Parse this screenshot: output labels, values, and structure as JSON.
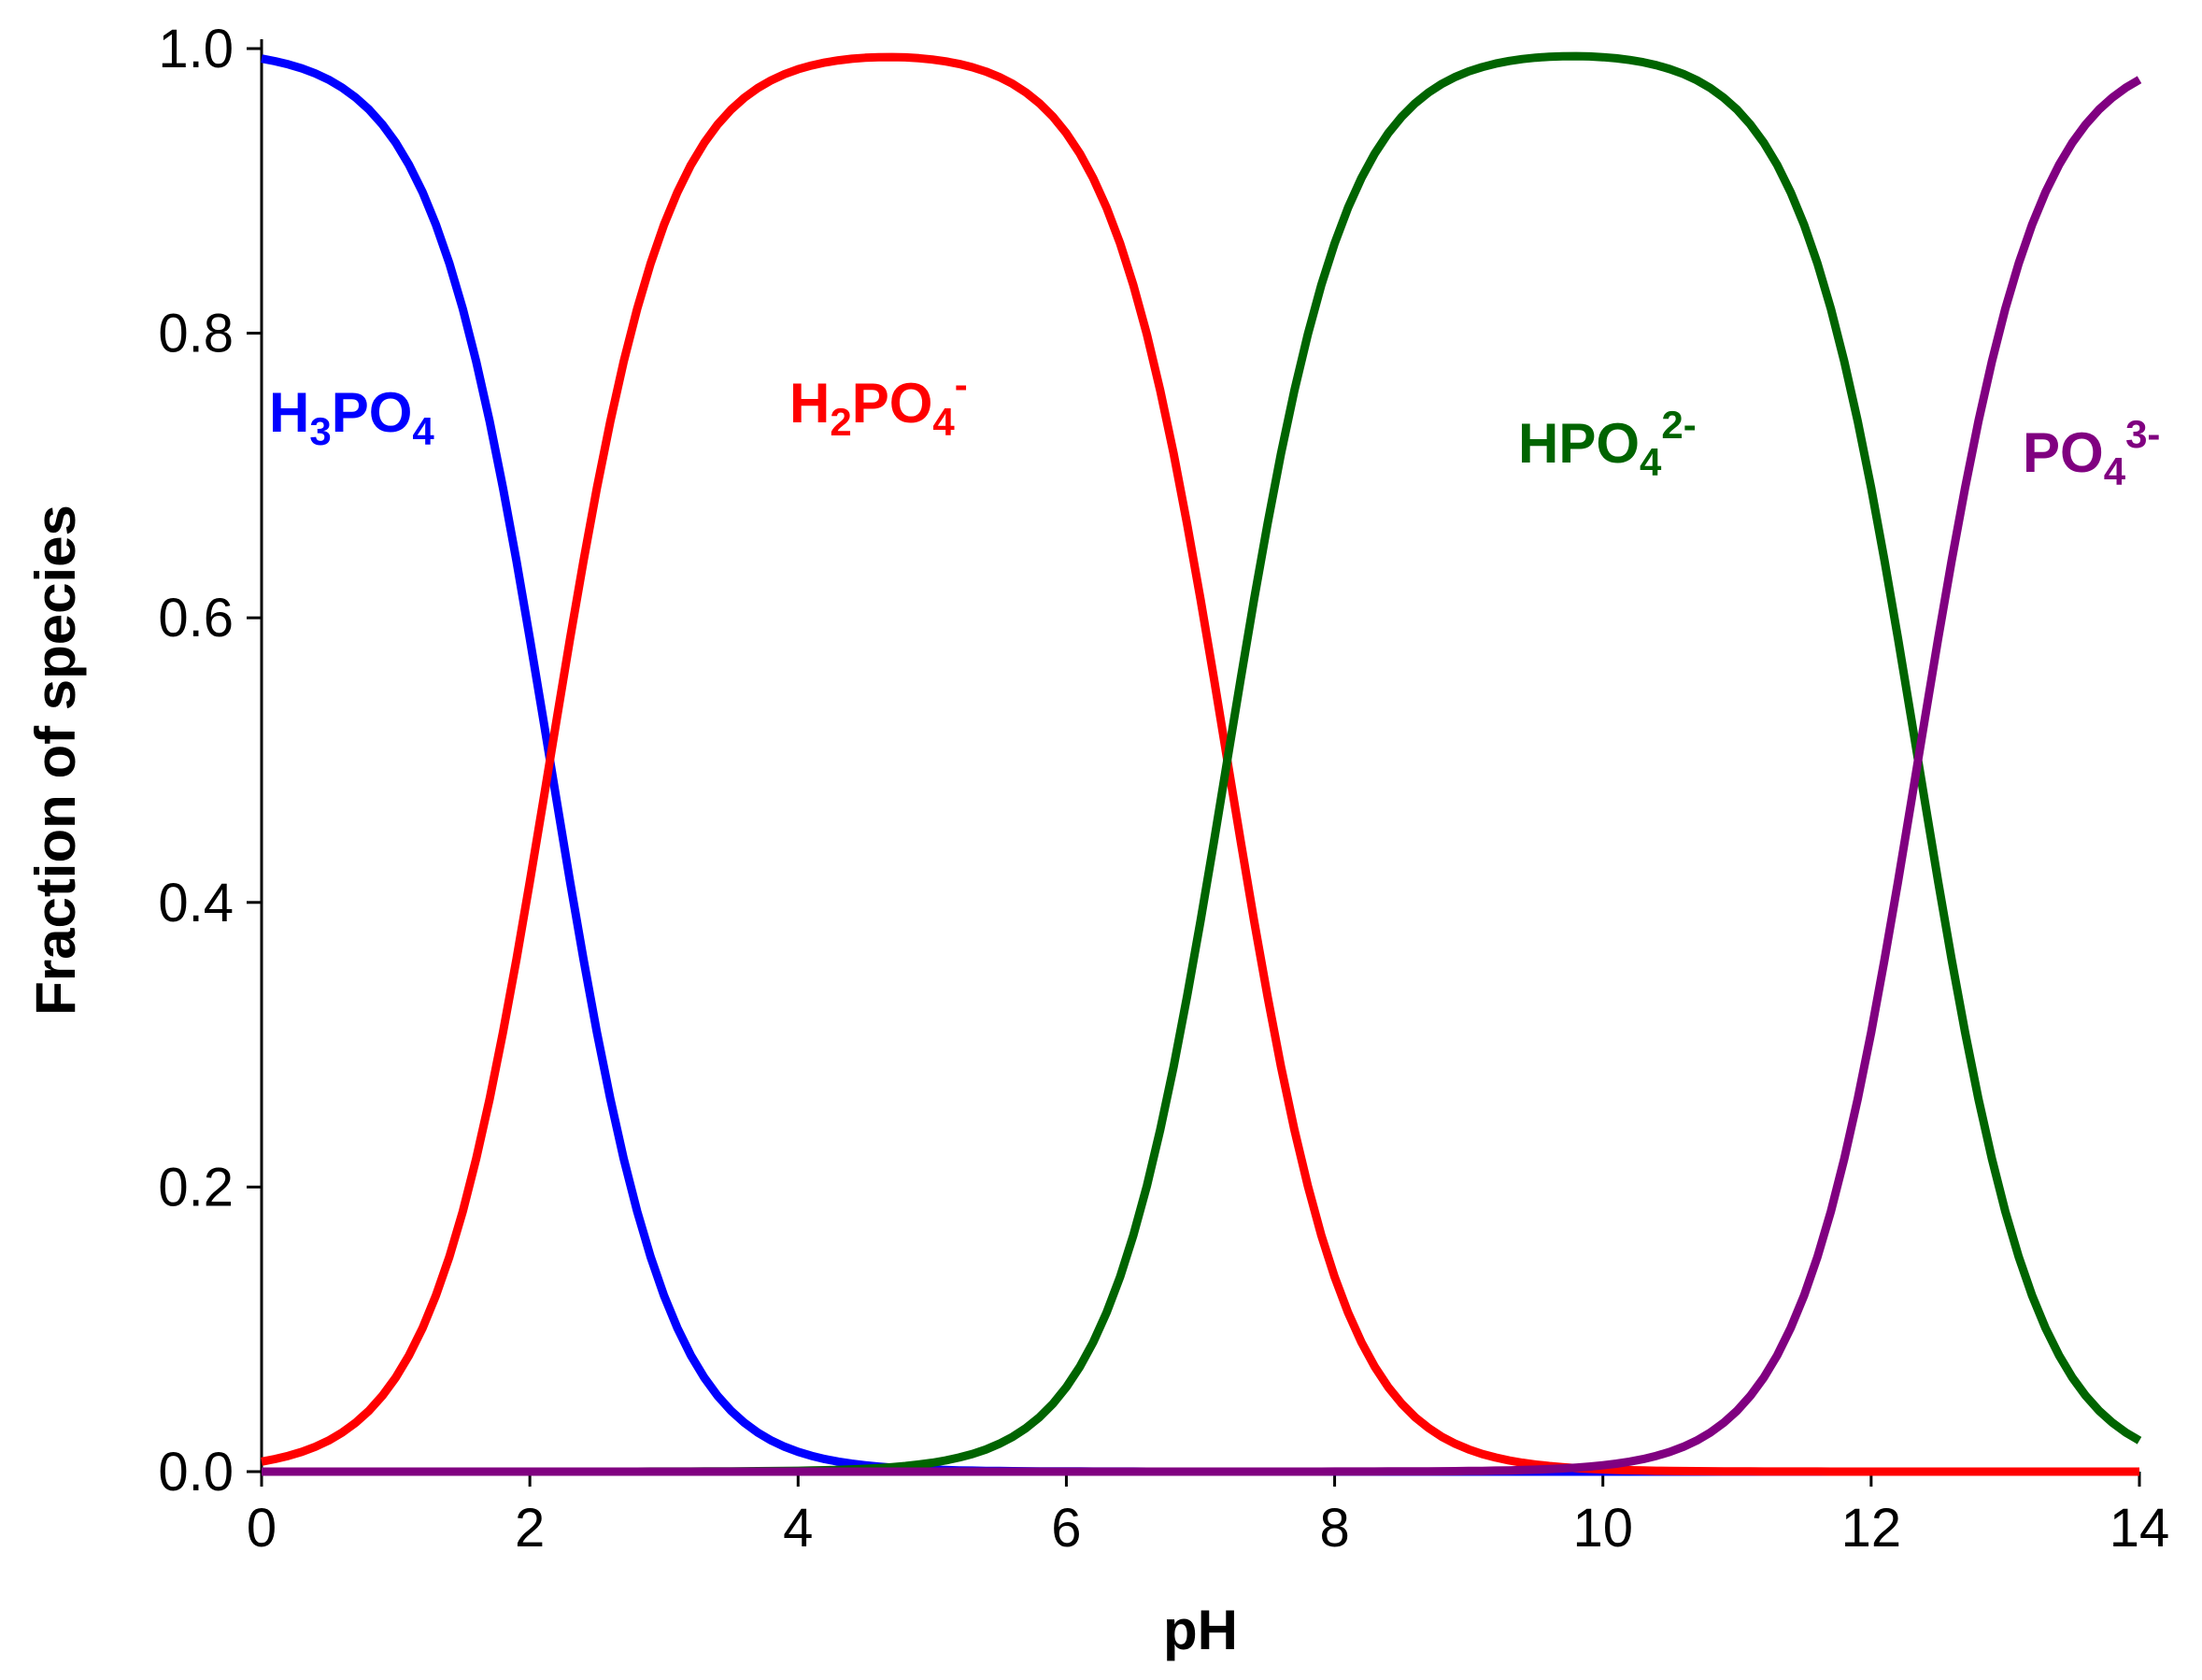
{
  "chart_data": {
    "type": "line",
    "title": "",
    "xlabel": "pH",
    "ylabel": "Fraction of species",
    "xlim": [
      0,
      14
    ],
    "ylim": [
      0,
      1.0
    ],
    "x_ticks": [
      "0",
      "2",
      "4",
      "6",
      "8",
      "10",
      "12",
      "14"
    ],
    "y_ticks": [
      "0.0",
      "0.2",
      "0.4",
      "0.6",
      "0.8",
      "1.0"
    ],
    "x_tick_values": [
      0,
      2,
      4,
      6,
      8,
      10,
      12,
      14
    ],
    "y_tick_values": [
      0,
      0.2,
      0.4,
      0.6,
      0.8,
      1.0
    ],
    "grid": false,
    "legend": "none",
    "species_model": {
      "pKa": [
        2.15,
        7.2,
        12.35
      ],
      "ph_step": 0.1
    },
    "series": [
      {
        "name": "H3PO4",
        "label_base": "H",
        "label_sub1": "3",
        "label_mid": "PO",
        "label_sub2": "4",
        "label_sup": "",
        "color": "#0000FF",
        "crossings": [
          {
            "x": 2.15,
            "y": 0.5
          }
        ]
      },
      {
        "name": "H2PO4-",
        "label_base": "H",
        "label_sub1": "2",
        "label_mid": "PO",
        "label_sub2": "4",
        "label_sup": "-",
        "color": "#FF0000",
        "crossings": [
          {
            "x": 2.15,
            "y": 0.5
          },
          {
            "x": 7.2,
            "y": 0.5
          }
        ]
      },
      {
        "name": "HPO42-",
        "label_base": "",
        "label_sub1": "",
        "label_mid": "HPO",
        "label_sub2": "4",
        "label_sup": "2-",
        "color": "#006400",
        "crossings": [
          {
            "x": 7.2,
            "y": 0.5
          },
          {
            "x": 12.35,
            "y": 0.5
          }
        ]
      },
      {
        "name": "PO43-",
        "label_base": "",
        "label_sub1": "",
        "label_mid": "PO",
        "label_sub2": "4",
        "label_sup": "3-",
        "color": "#800080",
        "crossings": [
          {
            "x": 12.35,
            "y": 0.5
          }
        ]
      }
    ]
  }
}
